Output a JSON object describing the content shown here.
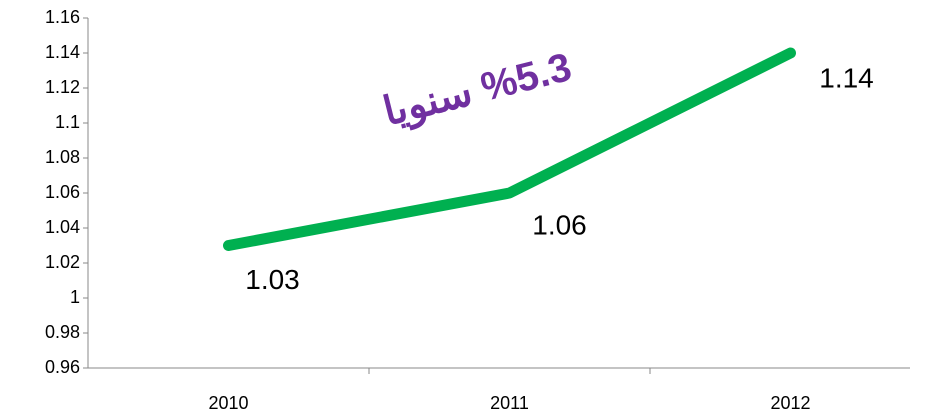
{
  "chart_data": {
    "type": "line",
    "categories": [
      "2010",
      "2011",
      "2012"
    ],
    "series": [
      {
        "color": "#00b050",
        "values": [
          1.03,
          1.06,
          1.14
        ]
      }
    ],
    "ylim": [
      0.96,
      1.16
    ],
    "yticks": [
      0.96,
      0.98,
      1,
      1.02,
      1.04,
      1.06,
      1.08,
      1.1,
      1.12,
      1.14,
      1.16
    ],
    "grid": false,
    "annotation": "%5.3 سنويا",
    "annotation_color": "#7030a0"
  }
}
